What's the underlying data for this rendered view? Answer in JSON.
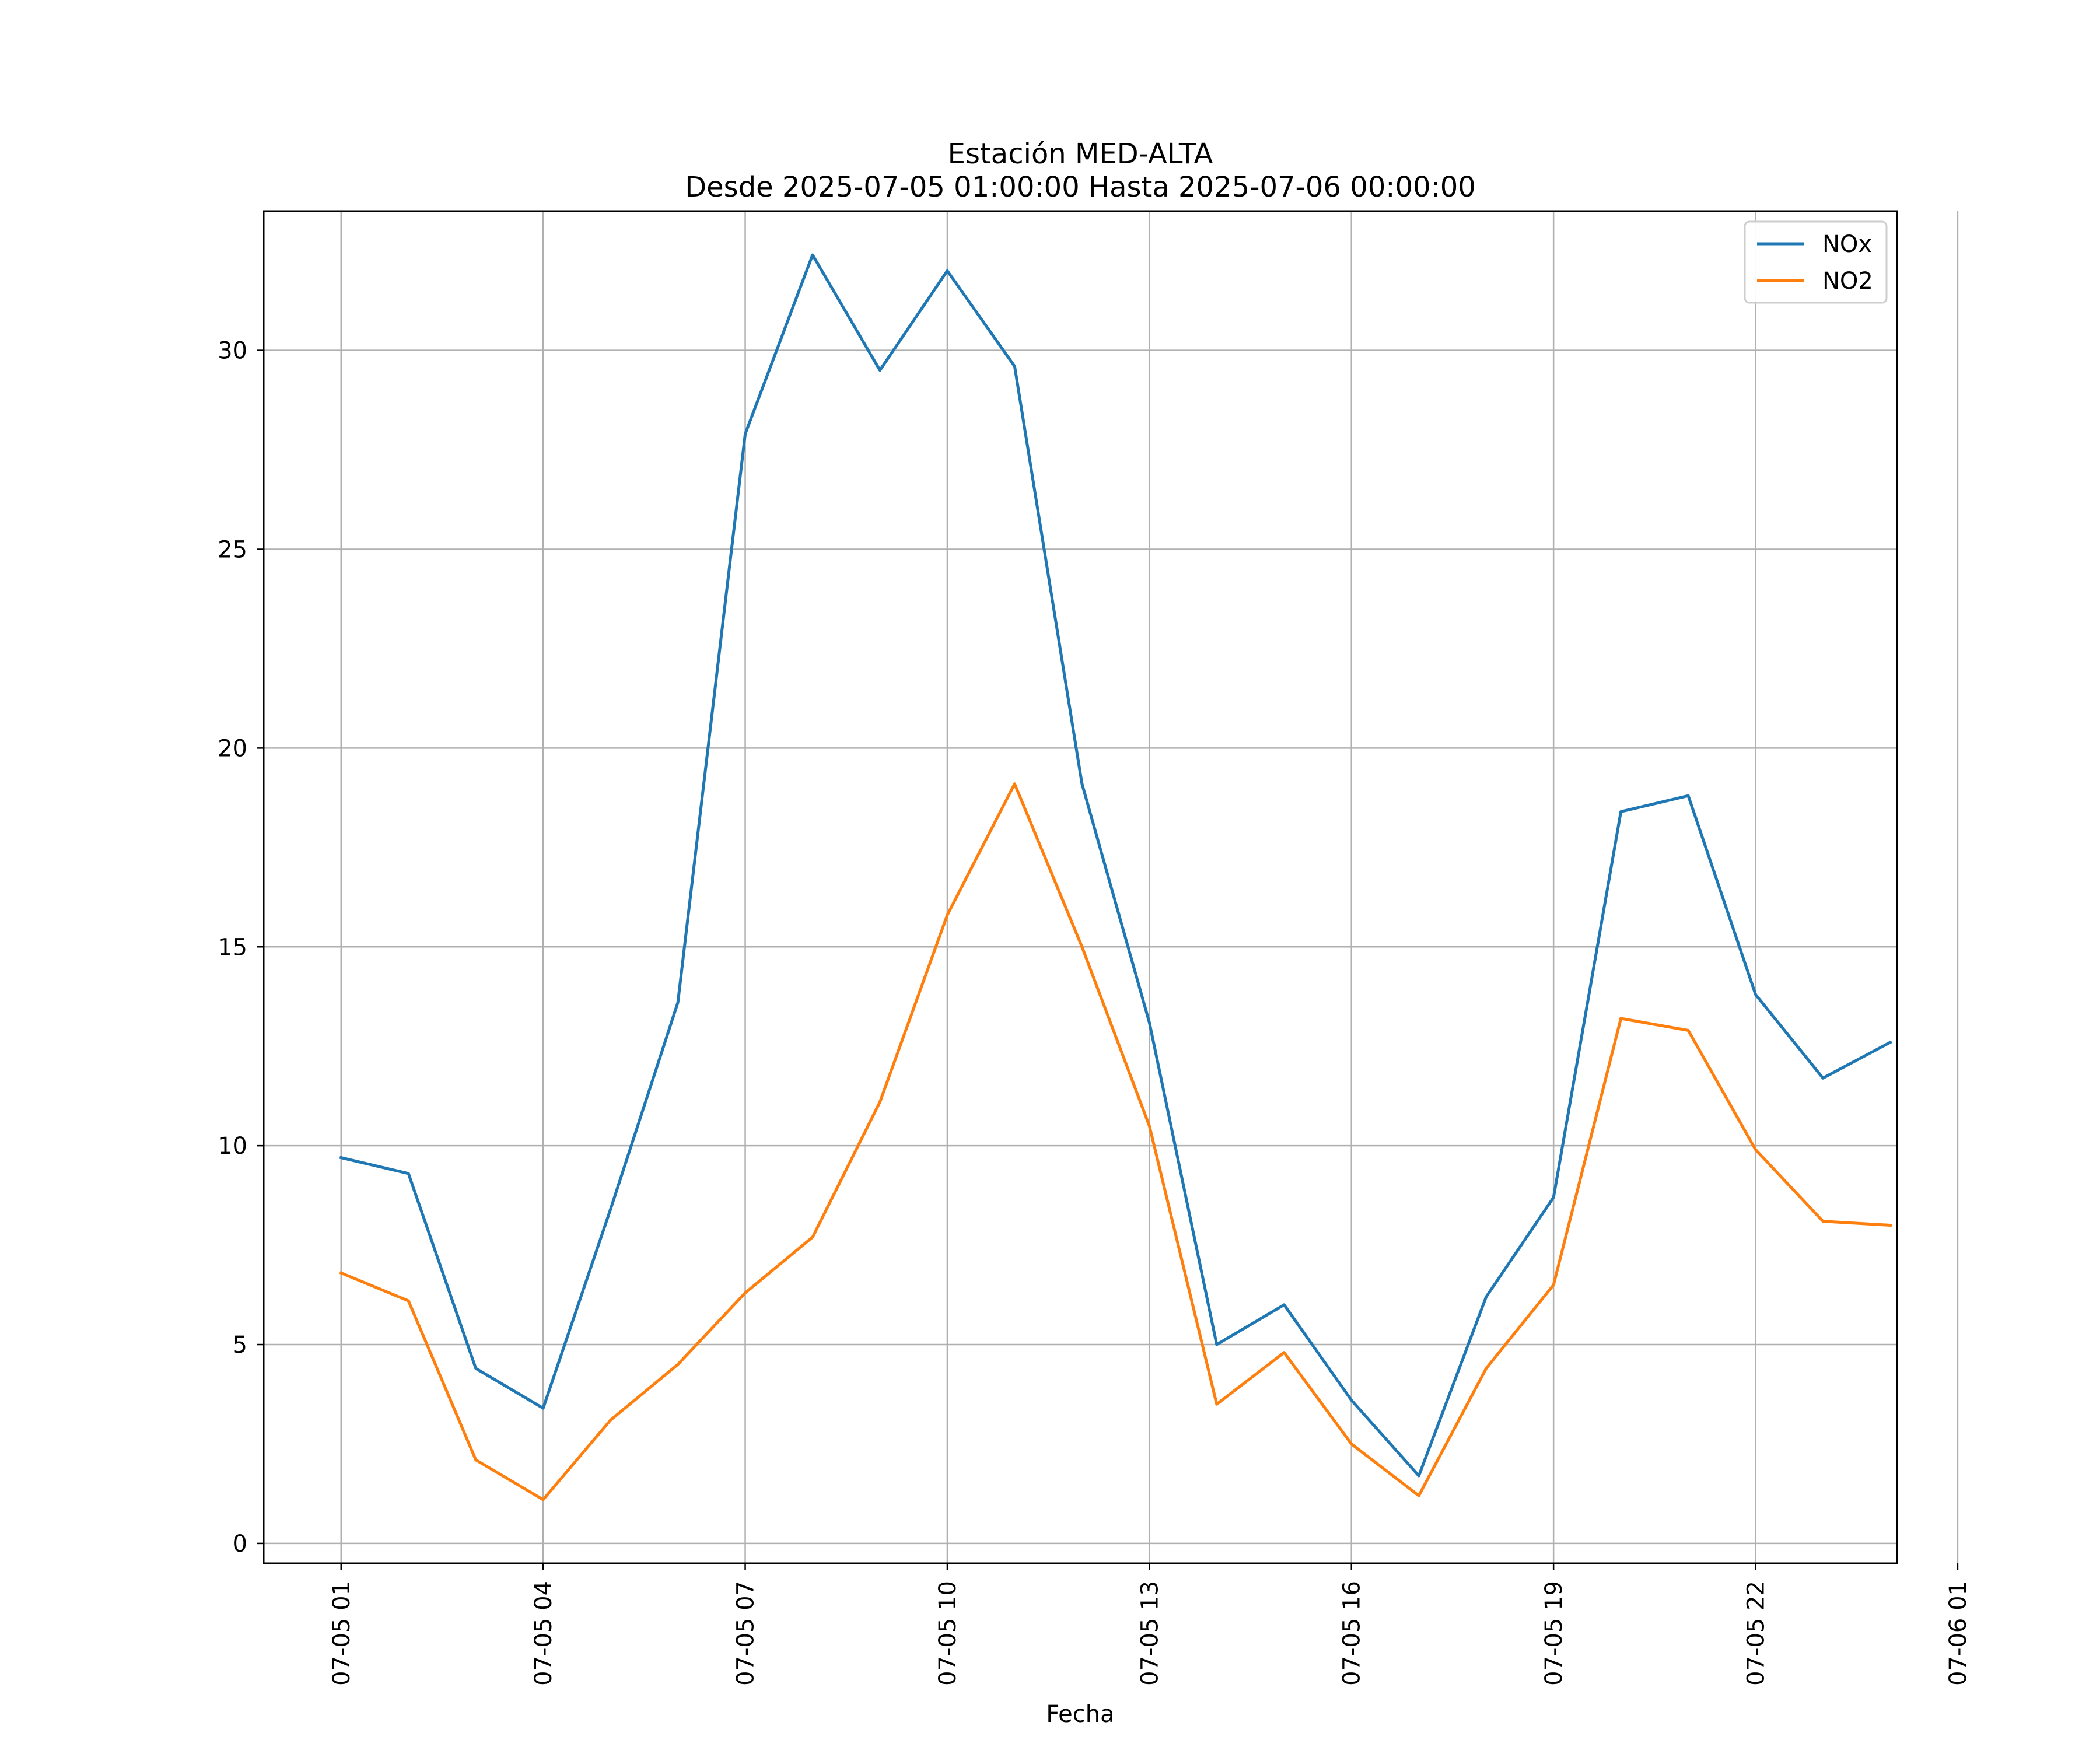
{
  "chart_data": {
    "type": "line",
    "title_line1": "Estación MED-ALTA",
    "title_line2": "Desde 2025-07-05 01:00:00 Hasta 2025-07-06 00:00:00",
    "xlabel": "Fecha",
    "ylabel": "",
    "x_hours": [
      1,
      2,
      3,
      4,
      5,
      6,
      7,
      8,
      9,
      10,
      11,
      12,
      13,
      14,
      15,
      16,
      17,
      18,
      19,
      20,
      21,
      22,
      23,
      24
    ],
    "xlim": [
      -0.15,
      24.1
    ],
    "ylim": [
      -0.5,
      33.5
    ],
    "x_ticks": [
      {
        "hour": 1,
        "label": "07-05 01"
      },
      {
        "hour": 4,
        "label": "07-05 04"
      },
      {
        "hour": 7,
        "label": "07-05 07"
      },
      {
        "hour": 10,
        "label": "07-05 10"
      },
      {
        "hour": 13,
        "label": "07-05 13"
      },
      {
        "hour": 16,
        "label": "07-05 16"
      },
      {
        "hour": 19,
        "label": "07-05 19"
      },
      {
        "hour": 22,
        "label": "07-05 22"
      },
      {
        "hour": 25,
        "label": "07-06 01"
      }
    ],
    "y_ticks": [
      {
        "value": 0,
        "label": "0"
      },
      {
        "value": 5,
        "label": "5"
      },
      {
        "value": 10,
        "label": "10"
      },
      {
        "value": 15,
        "label": "15"
      },
      {
        "value": 20,
        "label": "20"
      },
      {
        "value": 25,
        "label": "25"
      },
      {
        "value": 30,
        "label": "30"
      }
    ],
    "grid": true,
    "legend_position": "top-right",
    "series": [
      {
        "name": "NOx",
        "color": "#1f77b4",
        "values": [
          9.7,
          9.3,
          4.4,
          3.4,
          8.4,
          13.6,
          27.9,
          32.4,
          29.5,
          32.0,
          29.6,
          19.1,
          13.1,
          5.0,
          6.0,
          3.6,
          1.7,
          6.2,
          8.7,
          18.4,
          18.8,
          13.8,
          11.7,
          12.6
        ]
      },
      {
        "name": "NO2",
        "color": "#ff7f0e",
        "values": [
          6.8,
          6.1,
          2.1,
          1.1,
          3.1,
          4.5,
          6.3,
          7.7,
          11.1,
          15.8,
          19.1,
          15.0,
          10.5,
          3.5,
          4.8,
          2.5,
          1.2,
          4.4,
          6.5,
          13.2,
          12.9,
          9.9,
          8.1,
          8.0
        ]
      }
    ]
  }
}
